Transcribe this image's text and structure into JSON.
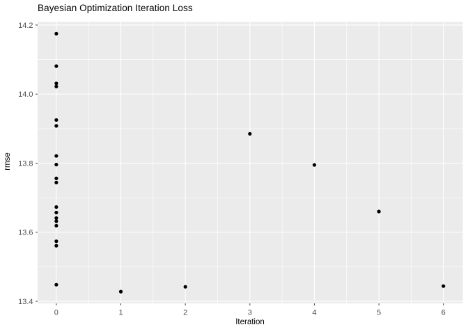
{
  "chart_data": {
    "type": "scatter",
    "title": "Bayesian Optimization Iteration Loss",
    "xlabel": "Iteration",
    "ylabel": "rmse",
    "x_ticks": [
      0,
      1,
      2,
      3,
      4,
      5,
      6
    ],
    "x_tick_labels": [
      "0",
      "1",
      "2",
      "3",
      "4",
      "5",
      "6"
    ],
    "y_ticks": [
      13.4,
      13.6,
      13.8,
      14.0,
      14.2
    ],
    "y_tick_labels": [
      "13.4",
      "13.6",
      "13.8",
      "14.0",
      "14.2"
    ],
    "xlim": [
      -0.29,
      6.3
    ],
    "ylim": [
      13.394,
      14.209
    ],
    "grid": "white major and minor gridlines on grey panel",
    "legend_position": "none",
    "points": [
      {
        "x": 0,
        "y": 14.175
      },
      {
        "x": 0,
        "y": 14.081
      },
      {
        "x": 0,
        "y": 14.031
      },
      {
        "x": 0,
        "y": 14.022
      },
      {
        "x": 0,
        "y": 13.925
      },
      {
        "x": 0,
        "y": 13.908
      },
      {
        "x": 0,
        "y": 13.821
      },
      {
        "x": 0,
        "y": 13.796
      },
      {
        "x": 0,
        "y": 13.756
      },
      {
        "x": 0,
        "y": 13.744
      },
      {
        "x": 0,
        "y": 13.673
      },
      {
        "x": 0,
        "y": 13.657
      },
      {
        "x": 0,
        "y": 13.641
      },
      {
        "x": 0,
        "y": 13.632
      },
      {
        "x": 0,
        "y": 13.619
      },
      {
        "x": 0,
        "y": 13.574
      },
      {
        "x": 0,
        "y": 13.561
      },
      {
        "x": 0,
        "y": 13.448
      },
      {
        "x": 1,
        "y": 13.428
      },
      {
        "x": 2,
        "y": 13.442
      },
      {
        "x": 3,
        "y": 13.885
      },
      {
        "x": 4,
        "y": 13.795
      },
      {
        "x": 5,
        "y": 13.66
      },
      {
        "x": 6,
        "y": 13.444
      }
    ]
  },
  "style": {
    "background": "#FFFFFF",
    "panel_bg": "#EBEBEB",
    "grid_color": "#FFFFFF",
    "point_color": "#000000",
    "axis_text_color": "#4D4D4D",
    "tick_mark_color": "#333333",
    "title_color": "#000000"
  }
}
